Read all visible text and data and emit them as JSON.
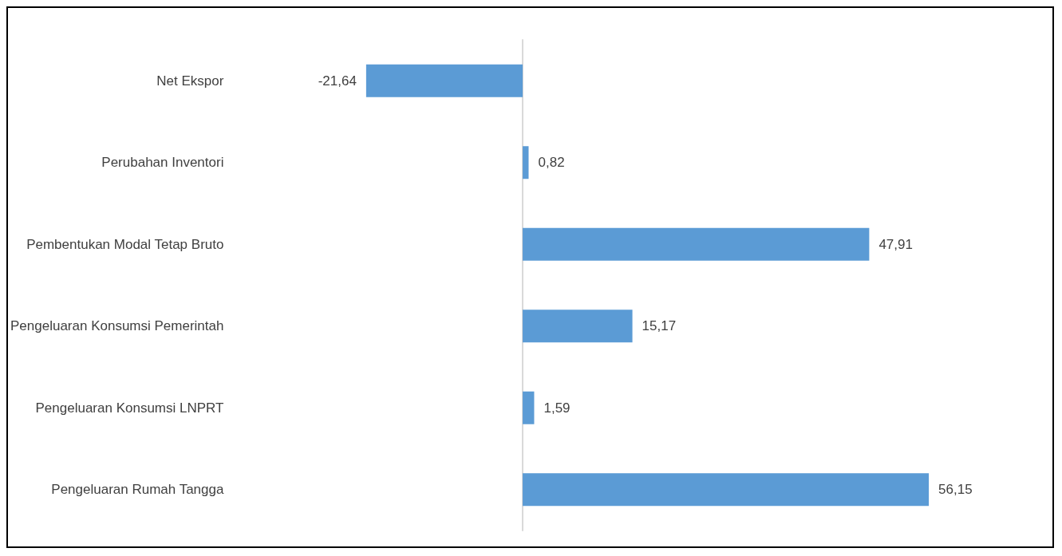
{
  "chart_data": {
    "type": "bar",
    "orientation": "horizontal",
    "categories": [
      "Net Ekspor",
      "Perubahan Inventori",
      "Pembentukan Modal Tetap Bruto",
      "Pengeluaran Konsumsi Pemerintah",
      "Pengeluaran Konsumsi LNPRT",
      "Pengeluaran Rumah Tangga"
    ],
    "values": [
      -21.64,
      0.82,
      47.91,
      15.17,
      1.59,
      56.15
    ],
    "value_labels": [
      "-21,64",
      "0,82",
      "47,91",
      "15,17",
      "1,59",
      "56,15"
    ],
    "color": "#5b9bd5",
    "grid": false,
    "tick_labels": "y"
  }
}
